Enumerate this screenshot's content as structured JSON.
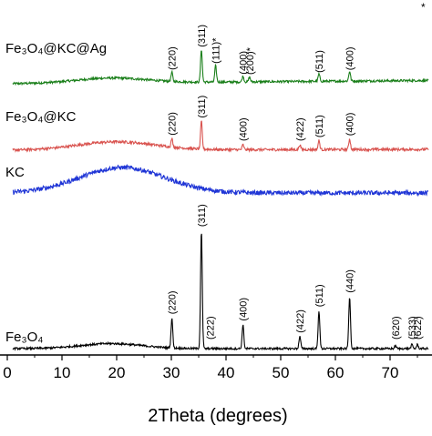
{
  "chart_data": {
    "type": "line",
    "title": "",
    "xlabel": "2Theta (degrees)",
    "ylabel": "",
    "xlim": [
      0,
      77
    ],
    "x_ticks": [
      "0",
      "10",
      "20",
      "30",
      "40",
      "50",
      "60",
      "70"
    ],
    "y_axis_shown": false,
    "legend": "none; series are labelled inline beside each trace",
    "top_right_mark": "*",
    "series": [
      {
        "name": "Fe₃O₄@KC@Ag",
        "color": "#1a7f1a",
        "broad_hump": {
          "center": 19,
          "width": 9,
          "height": 0.3
        },
        "baseline_slope": 0.2,
        "noise": 0.07,
        "peaks": [
          {
            "x": 30.1,
            "height": 0.55,
            "label": "(220)"
          },
          {
            "x": 35.5,
            "height": 2.0,
            "label": "(311)"
          },
          {
            "x": 38.1,
            "height": 1.0,
            "label": "(111)*"
          },
          {
            "x": 43.1,
            "height": 0.35,
            "label": "(400)"
          },
          {
            "x": 44.3,
            "height": 0.3,
            "label": "(200)*"
          },
          {
            "x": 57.0,
            "height": 0.45,
            "label": "(511)"
          },
          {
            "x": 62.6,
            "height": 0.6,
            "label": "(400)"
          }
        ]
      },
      {
        "name": "Fe₃O₄@KC",
        "color": "#d9534f",
        "broad_hump": {
          "center": 20,
          "width": 10,
          "height": 0.5
        },
        "baseline_slope": 0.05,
        "noise": 0.08,
        "peaks": [
          {
            "x": 30.1,
            "height": 0.5,
            "label": "(220)"
          },
          {
            "x": 35.5,
            "height": 1.7,
            "label": "(311)"
          },
          {
            "x": 43.1,
            "height": 0.3,
            "label": "(400)"
          },
          {
            "x": 53.5,
            "height": 0.3,
            "label": "(422)"
          },
          {
            "x": 57.0,
            "height": 0.55,
            "label": "(511)"
          },
          {
            "x": 62.6,
            "height": 0.65,
            "label": "(400)"
          }
        ]
      },
      {
        "name": "KC",
        "color": "#1f35d6",
        "broad_hump": {
          "center": 21,
          "width": 11,
          "height": 1.0
        },
        "baseline_slope": 0.0,
        "noise": 0.09,
        "peaks": []
      },
      {
        "name": "Fe₃O₄",
        "color": "#000000",
        "broad_hump": {
          "center": 19,
          "width": 8,
          "height": 0.25
        },
        "baseline_slope": 0.0,
        "noise": 0.05,
        "peaks": [
          {
            "x": 30.1,
            "height": 1.5,
            "label": "(220)"
          },
          {
            "x": 35.5,
            "height": 5.9,
            "label": "(311)"
          },
          {
            "x": 37.1,
            "height": 0.0,
            "label": "(222)"
          },
          {
            "x": 43.1,
            "height": 1.2,
            "label": "(400)"
          },
          {
            "x": 53.5,
            "height": 0.6,
            "label": "(422)"
          },
          {
            "x": 57.0,
            "height": 1.9,
            "label": "(511)"
          },
          {
            "x": 62.6,
            "height": 2.6,
            "label": "(440)"
          },
          {
            "x": 71.0,
            "height": 0.15,
            "label": "(620)"
          },
          {
            "x": 74.0,
            "height": 0.2,
            "label": "(533)"
          },
          {
            "x": 75.0,
            "height": 0.2,
            "label": "(622)"
          }
        ]
      }
    ]
  }
}
